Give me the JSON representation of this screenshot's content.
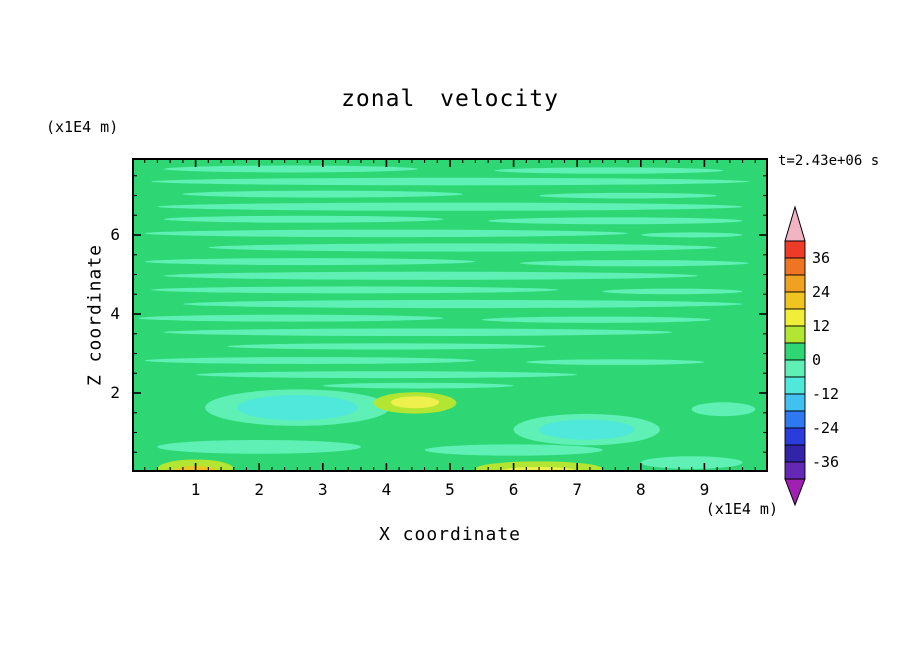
{
  "chart_data": {
    "type": "heatmap",
    "title": "zonal velocity",
    "xlabel": "X coordinate",
    "ylabel": "Z coordinate",
    "x_unit": "(x1E4 m)",
    "y_unit": "(x1E4 m)",
    "time_annotation": "t=2.43e+06 s",
    "x_range": [
      0,
      10
    ],
    "y_range": [
      0,
      7.95
    ],
    "x_major_ticks": [
      1,
      2,
      3,
      4,
      5,
      6,
      7,
      8,
      9
    ],
    "y_major_ticks": [
      2,
      4,
      6
    ],
    "x_minor_step": 0.2,
    "y_minor_step": 0.5,
    "grid": false,
    "legend_position": "right-colorbar",
    "colorbar": {
      "tick_labels": [
        "36",
        "24",
        "12",
        "0",
        "-12",
        "-24",
        "-36"
      ],
      "contour_interval": 6,
      "segment_colors_top_to_bottom": [
        "#ee3b28",
        "#f07522",
        "#f0a122",
        "#f0c522",
        "#f0ee39",
        "#b2e632",
        "#2ed773",
        "#5ef0b4",
        "#4fe8da",
        "#41c1f0",
        "#2e78f0",
        "#2a3cdc",
        "#3223a8",
        "#6428b4"
      ],
      "over_color": "#f2b4c3",
      "under_color": "#a020b4"
    },
    "field": {
      "description": "zonal velocity field near zero everywhere: green background (0..6) with thin horizontal aquamarine streaks (-6..0); weak cyan minima and yellow maxima near the bottom boundary",
      "background_color": "#2ed773",
      "palette": {
        "aq": "#5ef0b4",
        "cy": "#4fe8da",
        "yg": "#b2e632",
        "ye": "#eef04e",
        "go": "#f0c522"
      },
      "shapes": [
        [
          0.25,
          0.035,
          0.2,
          0.011,
          "aq"
        ],
        [
          0.75,
          0.04,
          0.18,
          0.01,
          "aq"
        ],
        [
          0.5,
          0.075,
          0.47,
          0.012,
          "aq"
        ],
        [
          0.3,
          0.115,
          0.22,
          0.011,
          "aq"
        ],
        [
          0.78,
          0.12,
          0.14,
          0.009,
          "aq"
        ],
        [
          0.5,
          0.155,
          0.46,
          0.013,
          "aq"
        ],
        [
          0.27,
          0.195,
          0.22,
          0.011,
          "aq"
        ],
        [
          0.76,
          0.2,
          0.2,
          0.011,
          "aq"
        ],
        [
          0.4,
          0.24,
          0.38,
          0.012,
          "aq"
        ],
        [
          0.88,
          0.245,
          0.08,
          0.008,
          "aq"
        ],
        [
          0.52,
          0.285,
          0.4,
          0.013,
          "aq"
        ],
        [
          0.28,
          0.33,
          0.26,
          0.011,
          "aq"
        ],
        [
          0.79,
          0.335,
          0.18,
          0.01,
          "aq"
        ],
        [
          0.47,
          0.375,
          0.42,
          0.013,
          "aq"
        ],
        [
          0.35,
          0.42,
          0.32,
          0.011,
          "aq"
        ],
        [
          0.85,
          0.425,
          0.11,
          0.009,
          "aq"
        ],
        [
          0.52,
          0.465,
          0.44,
          0.013,
          "aq"
        ],
        [
          0.25,
          0.51,
          0.24,
          0.011,
          "aq"
        ],
        [
          0.73,
          0.515,
          0.18,
          0.01,
          "aq"
        ],
        [
          0.45,
          0.555,
          0.4,
          0.012,
          "aq"
        ],
        [
          0.4,
          0.6,
          0.25,
          0.01,
          "aq"
        ],
        [
          0.28,
          0.645,
          0.26,
          0.011,
          "aq"
        ],
        [
          0.76,
          0.65,
          0.14,
          0.009,
          "aq"
        ],
        [
          0.4,
          0.69,
          0.3,
          0.011,
          "aq"
        ],
        [
          0.45,
          0.725,
          0.15,
          0.009,
          "aq"
        ],
        [
          0.26,
          0.795,
          0.145,
          0.058,
          "aq"
        ],
        [
          0.26,
          0.795,
          0.095,
          0.04,
          "cy"
        ],
        [
          0.715,
          0.865,
          0.115,
          0.05,
          "aq"
        ],
        [
          0.715,
          0.865,
          0.075,
          0.032,
          "cy"
        ],
        [
          0.445,
          0.78,
          0.065,
          0.034,
          "yg"
        ],
        [
          0.445,
          0.778,
          0.038,
          0.019,
          "ye"
        ],
        [
          0.2,
          0.92,
          0.16,
          0.022,
          "aq"
        ],
        [
          0.6,
          0.93,
          0.14,
          0.018,
          "aq"
        ],
        [
          0.1,
          0.99,
          0.06,
          0.03,
          "yg"
        ],
        [
          0.1,
          0.998,
          0.035,
          0.017,
          "go"
        ],
        [
          0.64,
          0.99,
          0.1,
          0.024,
          "yg"
        ],
        [
          0.64,
          0.997,
          0.06,
          0.013,
          "ye"
        ],
        [
          0.88,
          0.97,
          0.08,
          0.02,
          "aq"
        ],
        [
          0.93,
          0.8,
          0.05,
          0.022,
          "aq"
        ]
      ]
    }
  }
}
